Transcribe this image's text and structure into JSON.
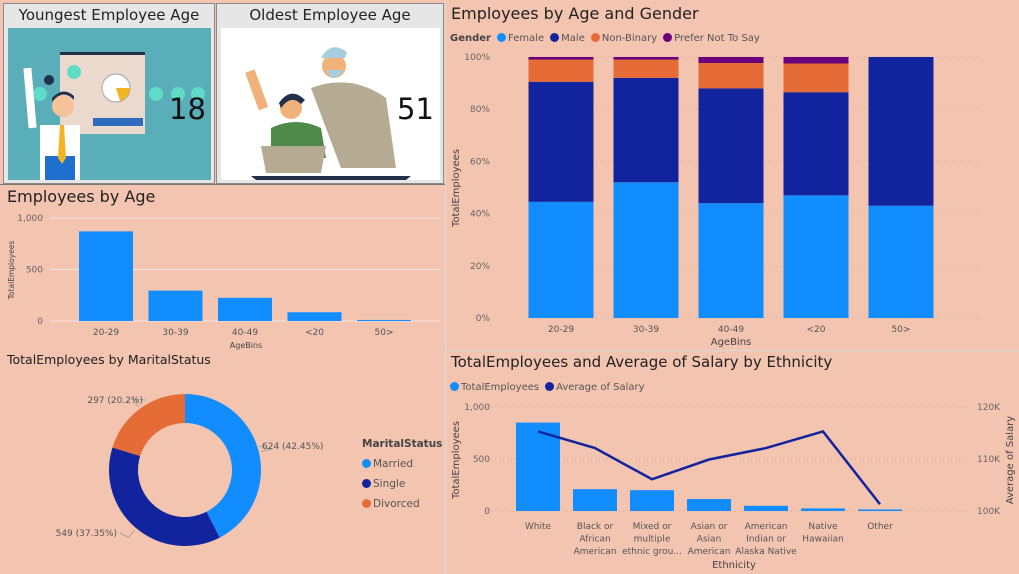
{
  "cards": [
    {
      "title": "Youngest Employee Age",
      "value": "18"
    },
    {
      "title": "Oldest Employee Age",
      "value": "51"
    }
  ],
  "colors": {
    "background": "#f3c4af",
    "female": "#118dff",
    "male": "#12239e",
    "nonbinary": "#e66c37",
    "prefer_not": "#6b007b"
  },
  "chart_data": [
    {
      "type": "bar",
      "title": "Employees by Age",
      "xlabel": "AgeBins",
      "ylabel": "TotalEmployees",
      "categories": [
        "20-29",
        "30-39",
        "40-49",
        "<20",
        "50>"
      ],
      "values": [
        870,
        295,
        225,
        85,
        10
      ],
      "ylim": [
        0,
        1000
      ],
      "yticks": [
        "0",
        "500",
        "1,000"
      ],
      "grid": true,
      "color": "#118dff"
    },
    {
      "type": "pie",
      "title": "TotalEmployees by MaritalStatus",
      "legend_title": "MaritalStatus",
      "legend_position": "right",
      "donut": true,
      "slices": [
        {
          "name": "Married",
          "value": 624,
          "label": "624 (42.45%)",
          "color": "#118dff"
        },
        {
          "name": "Single",
          "value": 549,
          "label": "549 (37.35%)",
          "color": "#12239e"
        },
        {
          "name": "Divorced",
          "value": 297,
          "label": "297 (20.2%)",
          "color": "#e66c37"
        }
      ]
    },
    {
      "type": "bar",
      "stacked": "percent",
      "title": "Employees by Age and Gender",
      "xlabel": "AgeBins",
      "ylabel": "TotalEmployees",
      "legend_title": "Gender",
      "legend_position": "top-left",
      "categories": [
        "20-29",
        "30-39",
        "40-49",
        "<20",
        "50>"
      ],
      "ylim": [
        0,
        100
      ],
      "yticks": [
        "0%",
        "20%",
        "40%",
        "60%",
        "80%",
        "100%"
      ],
      "series": [
        {
          "name": "Female",
          "color": "#118dff",
          "values": [
            44.5,
            52,
            44,
            47,
            43
          ]
        },
        {
          "name": "Male",
          "color": "#12239e",
          "values": [
            46,
            40,
            44,
            39.5,
            57
          ]
        },
        {
          "name": "Non-Binary",
          "color": "#e66c37",
          "values": [
            8.5,
            7,
            9.7,
            11,
            0
          ]
        },
        {
          "name": "Prefer Not To Say",
          "color": "#6b007b",
          "values": [
            1,
            1,
            2.3,
            2.5,
            0
          ]
        }
      ]
    },
    {
      "type": "bar",
      "combo": "line",
      "title": "TotalEmployees and Average of Salary by Ethnicity",
      "xlabel": "Ethnicity",
      "ylabel": "TotalEmployees",
      "y2label": "Average of Salary",
      "legend_position": "top-left",
      "categories": [
        [
          "White"
        ],
        [
          "Black or",
          "African",
          "American"
        ],
        [
          "Mixed or",
          "multiple",
          "ethnic grou..."
        ],
        [
          "Asian or",
          "Asian",
          "American"
        ],
        [
          "American",
          "Indian or",
          "Alaska Native"
        ],
        [
          "Native",
          "Hawaiian"
        ],
        [
          "Other"
        ]
      ],
      "ylim": [
        0,
        1000
      ],
      "yticks": [
        "0",
        "500",
        "1,000"
      ],
      "y2lim": [
        100000,
        120000
      ],
      "y2ticks": [
        "100K",
        "110K",
        "120K"
      ],
      "series": [
        {
          "name": "TotalEmployees",
          "type": "bar",
          "color": "#118dff",
          "values": [
            850,
            210,
            200,
            115,
            50,
            25,
            15
          ]
        },
        {
          "name": "Average of Salary",
          "type": "line",
          "color": "#12239e",
          "values": [
            115300,
            112100,
            106100,
            109900,
            112100,
            115300,
            101300
          ]
        }
      ]
    }
  ]
}
